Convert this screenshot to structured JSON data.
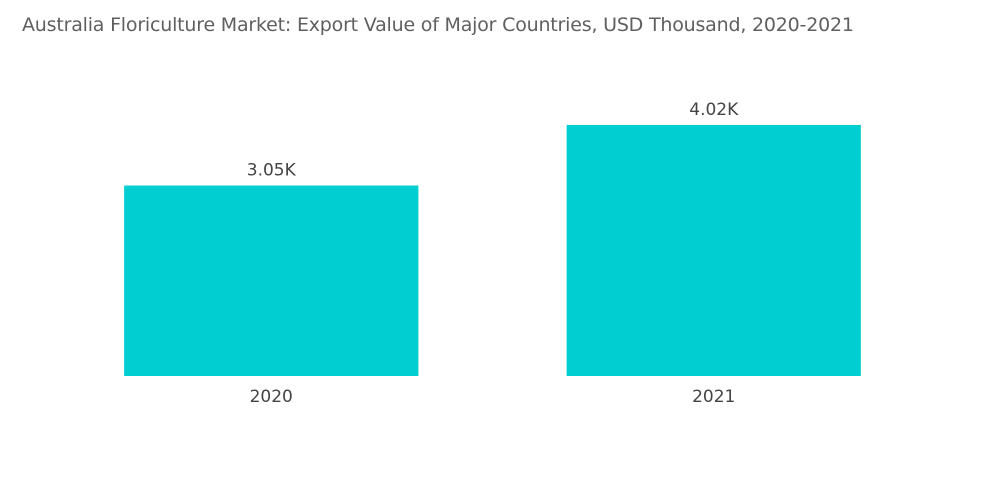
{
  "chart_data": {
    "type": "bar",
    "title": "Australia Floriculture Market: Export Value of Major Countries, USD Thousand, 2020-2021",
    "categories": [
      "2020",
      "2021"
    ],
    "values": [
      3.05,
      4.02
    ],
    "data_labels": [
      "3.05K",
      "4.02K"
    ],
    "xlabel": "",
    "ylabel": "",
    "ylim": [
      0,
      5.06
    ],
    "grid": false,
    "legend": "none",
    "bar_color": "#00ced1"
  }
}
